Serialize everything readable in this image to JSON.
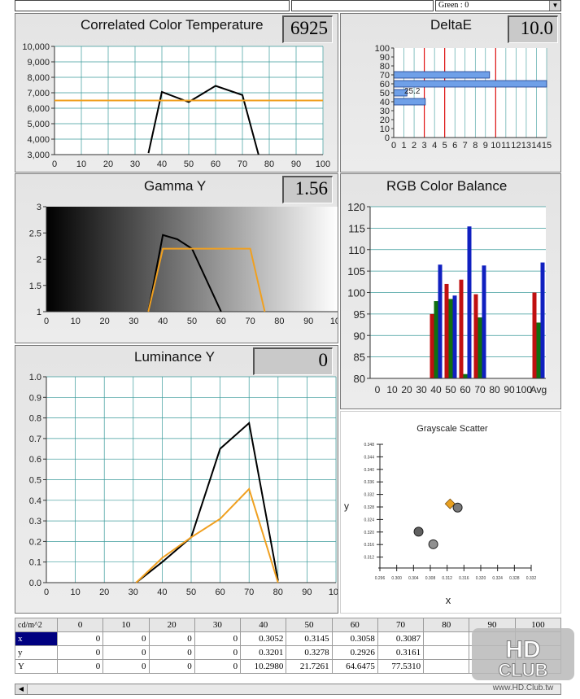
{
  "top": {
    "field3_text": "Green : 0"
  },
  "panels": {
    "cct": {
      "title": "Correlated Color Temperature",
      "value": "6925"
    },
    "deltae": {
      "title": "DeltaE",
      "value": "10.0"
    },
    "gamma": {
      "title": "Gamma Y",
      "value": "1.56"
    },
    "rgb": {
      "title": "RGB Color Balance"
    },
    "lum": {
      "title": "Luminance Y",
      "value": "0"
    },
    "scatter": {
      "title": "Grayscale Scatter",
      "xlabel": "x",
      "ylabel": "y"
    }
  },
  "colors": {
    "measured": "#000000",
    "reference": "#f0a020",
    "red": "#c01010",
    "green": "#107010",
    "blue": "#1020c0",
    "deltae_bar": "#6fa0e8",
    "deltae_line": "#e01010"
  },
  "chart_data": [
    {
      "id": "cct",
      "type": "line",
      "title": "Correlated Color Temperature",
      "xlim": [
        0,
        100
      ],
      "ylim": [
        3000,
        10000
      ],
      "xticks": [
        "0",
        "10",
        "20",
        "30",
        "40",
        "50",
        "60",
        "70",
        "80",
        "90",
        "100"
      ],
      "yticks": [
        "3,000",
        "4,000",
        "5,000",
        "6,000",
        "7,000",
        "8,000",
        "9,000",
        "10,000"
      ],
      "series": [
        {
          "x": [
            35,
            40,
            50,
            60,
            70,
            76
          ],
          "y": [
            3100,
            7050,
            6400,
            7450,
            6850,
            3000
          ]
        },
        {
          "x": [
            0,
            100
          ],
          "y": [
            6500,
            6500
          ]
        }
      ]
    },
    {
      "id": "deltae",
      "type": "bar",
      "title": "DeltaE",
      "xlim": [
        0,
        15
      ],
      "ylim": [
        0,
        100
      ],
      "xticks": [
        "0",
        "1",
        "2",
        "3",
        "4",
        "5",
        "6",
        "7",
        "8",
        "9",
        "10",
        "11",
        "12",
        "13",
        "14",
        "15"
      ],
      "yticks": [
        "0",
        "10",
        "20",
        "30",
        "40",
        "50",
        "60",
        "70",
        "80",
        "90",
        "100"
      ],
      "bars": [
        {
          "y": 40,
          "value": 3.1
        },
        {
          "y": 50,
          "value": 1.3
        },
        {
          "y": 60,
          "value": 15
        },
        {
          "y": 70,
          "value": 9.4
        }
      ],
      "reference_lines": [
        3,
        5,
        10
      ],
      "annotation": "25.2"
    },
    {
      "id": "gamma",
      "type": "line",
      "title": "Gamma Y",
      "xlim": [
        0,
        100
      ],
      "ylim": [
        1,
        3
      ],
      "xticks": [
        "0",
        "10",
        "20",
        "30",
        "40",
        "50",
        "60",
        "70",
        "80",
        "90",
        "100"
      ],
      "yticks": [
        "1",
        "1.5",
        "2",
        "2.5",
        "3"
      ],
      "series": [
        {
          "x": [
            35,
            40,
            45,
            50,
            60
          ],
          "y": [
            1.0,
            2.46,
            2.38,
            2.2,
            1.0
          ]
        },
        {
          "x": [
            35,
            40,
            70,
            75
          ],
          "y": [
            1.0,
            2.2,
            2.2,
            1.0
          ]
        }
      ]
    },
    {
      "id": "rgb",
      "type": "bar",
      "title": "RGB Color Balance",
      "ylim": [
        80,
        120
      ],
      "categories": [
        "0",
        "10",
        "20",
        "30",
        "40",
        "50",
        "60",
        "70",
        "80",
        "90",
        "100",
        "Avg"
      ],
      "yticks": [
        "80",
        "85",
        "90",
        "95",
        "100",
        "105",
        "110",
        "115",
        "120"
      ],
      "series": [
        {
          "name": "R",
          "values": [
            null,
            null,
            null,
            null,
            95,
            102,
            103,
            99.6,
            null,
            null,
            null,
            100
          ]
        },
        {
          "name": "G",
          "values": [
            null,
            null,
            null,
            null,
            98,
            98.5,
            81,
            94.2,
            null,
            null,
            null,
            93
          ]
        },
        {
          "name": "B",
          "values": [
            null,
            null,
            null,
            null,
            106.5,
            99.3,
            115.4,
            106.3,
            null,
            null,
            null,
            107
          ]
        }
      ]
    },
    {
      "id": "lum",
      "type": "line",
      "title": "Luminance Y",
      "xlim": [
        0,
        100
      ],
      "ylim": [
        0,
        1
      ],
      "xticks": [
        "0",
        "10",
        "20",
        "30",
        "40",
        "50",
        "60",
        "70",
        "80",
        "90",
        "100"
      ],
      "yticks": [
        "0.0",
        "0.1",
        "0.2",
        "0.3",
        "0.4",
        "0.5",
        "0.6",
        "0.7",
        "0.8",
        "0.9",
        "1.0"
      ],
      "series": [
        {
          "x": [
            31,
            40,
            50,
            60,
            70,
            80
          ],
          "y": [
            0,
            0.1,
            0.22,
            0.65,
            0.775,
            0.01
          ]
        },
        {
          "x": [
            31,
            40,
            50,
            60,
            70,
            80
          ],
          "y": [
            0,
            0.12,
            0.22,
            0.31,
            0.455,
            0.0
          ]
        }
      ]
    },
    {
      "id": "scatter",
      "type": "scatter",
      "title": "Grayscale Scatter",
      "xlabel": "x",
      "ylabel": "y",
      "xlim": [
        0.296,
        0.332
      ],
      "ylim": [
        0.308,
        0.348
      ],
      "xticks": [
        "0.296",
        "0.300",
        "0.304",
        "0.308",
        "0.312",
        "0.316",
        "0.320",
        "0.324",
        "0.328",
        "0.332"
      ],
      "yticks": [
        "0.312",
        "0.316",
        "0.320",
        "0.324",
        "0.328",
        "0.332",
        "0.336",
        "0.340",
        "0.344",
        "0.348"
      ],
      "points": [
        {
          "x": 0.3052,
          "y": 0.3201
        },
        {
          "x": 0.3087,
          "y": 0.3161
        },
        {
          "x": 0.3145,
          "y": 0.3278
        }
      ],
      "target": {
        "x": 0.3127,
        "y": 0.329
      }
    }
  ],
  "table": {
    "corner": "cd/m^2",
    "columns": [
      "0",
      "10",
      "20",
      "30",
      "40",
      "50",
      "60",
      "70",
      "80",
      "90",
      "100"
    ],
    "rows": [
      {
        "label": "x",
        "cells": [
          "0",
          "0",
          "0",
          "0",
          "0.3052",
          "0.3145",
          "0.3058",
          "0.3087",
          "",
          "",
          ""
        ]
      },
      {
        "label": "y",
        "cells": [
          "0",
          "0",
          "0",
          "0",
          "0.3201",
          "0.3278",
          "0.2926",
          "0.3161",
          "",
          "",
          ""
        ]
      },
      {
        "label": "Y",
        "cells": [
          "0",
          "0",
          "0",
          "0",
          "10.2980",
          "21.7261",
          "64.6475",
          "77.5310",
          "",
          "",
          ""
        ]
      }
    ]
  },
  "logo": {
    "text": "HD CLUB",
    "url": "www.HD.Club.tw"
  }
}
